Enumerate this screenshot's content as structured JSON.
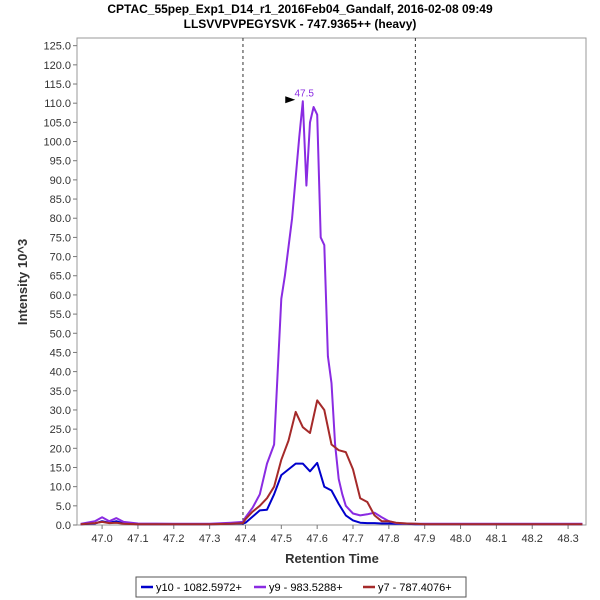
{
  "chart_data": {
    "type": "line",
    "title": "CPTAC_55pep_Exp1_D14_r1_2016Feb04_Gandalf, 2016-02-08 09:49",
    "subtitle": "LLSVVPVPEGYSVK - 747.9365++ (heavy)",
    "xlabel": "Retention Time",
    "ylabel": "Intensity 10^3",
    "xlim": [
      46.93,
      48.35
    ],
    "ylim": [
      0,
      127
    ],
    "x_ticks": [
      47.0,
      47.1,
      47.2,
      47.3,
      47.4,
      47.5,
      47.6,
      47.7,
      47.8,
      47.9,
      48.0,
      48.1,
      48.2,
      48.3
    ],
    "x_tick_labels": [
      "47.0",
      "47.1",
      "47.2",
      "47.3",
      "47.4",
      "47.5",
      "47.6",
      "47.7",
      "47.8",
      "47.9",
      "48.0",
      "48.1",
      "48.2",
      "48.3"
    ],
    "y_ticks": [
      0,
      5,
      10,
      15,
      20,
      25,
      30,
      35,
      40,
      45,
      50,
      55,
      60,
      65,
      70,
      75,
      80,
      85,
      90,
      95,
      100,
      105,
      110,
      115,
      120,
      125
    ],
    "y_tick_labels": [
      "0.0",
      "5.0",
      "10.0",
      "15.0",
      "20.0",
      "25.0",
      "30.0",
      "35.0",
      "40.0",
      "45.0",
      "50.0",
      "55.0",
      "60.0",
      "65.0",
      "70.0",
      "75.0",
      "80.0",
      "85.0",
      "90.0",
      "95.0",
      "100.0",
      "105.0",
      "110.0",
      "115.0",
      "120.0",
      "125.0"
    ],
    "vlines": [
      47.393,
      47.874
    ],
    "peak_annotation": {
      "x": 47.55,
      "y": 110.5,
      "label": "47.5"
    },
    "legend_position": "bottom",
    "series": [
      {
        "name": "y10 - 1082.5972+",
        "color": "#0000cc",
        "x": [
          46.94,
          46.98,
          47.0,
          47.02,
          47.04,
          47.06,
          47.1,
          47.2,
          47.3,
          47.36,
          47.393,
          47.4,
          47.42,
          47.44,
          47.46,
          47.48,
          47.5,
          47.52,
          47.54,
          47.56,
          47.58,
          47.6,
          47.62,
          47.64,
          47.66,
          47.68,
          47.7,
          47.72,
          47.74,
          47.76,
          47.78,
          47.8,
          47.82,
          47.85,
          47.874,
          47.9,
          48.0,
          48.1,
          48.2,
          48.34
        ],
        "y": [
          0.2,
          0.4,
          1.0,
          0.6,
          1.0,
          0.4,
          0.2,
          0.2,
          0.2,
          0.3,
          0.4,
          0.6,
          2.2,
          3.8,
          4.0,
          8.0,
          13.0,
          14.5,
          16.0,
          16.0,
          14.0,
          16.2,
          10.0,
          9.0,
          5.5,
          2.5,
          1.2,
          0.6,
          0.5,
          0.5,
          0.4,
          0.4,
          0.3,
          0.3,
          0.2,
          0.2,
          0.2,
          0.2,
          0.2,
          0.2
        ]
      },
      {
        "name": "y9 - 983.5288+",
        "color": "#8a2be2",
        "x": [
          46.94,
          46.98,
          47.0,
          47.02,
          47.04,
          47.06,
          47.1,
          47.2,
          47.3,
          47.36,
          47.393,
          47.4,
          47.42,
          47.44,
          47.46,
          47.48,
          47.5,
          47.51,
          47.53,
          47.55,
          47.56,
          47.57,
          47.58,
          47.59,
          47.6,
          47.61,
          47.62,
          47.63,
          47.64,
          47.65,
          47.66,
          47.67,
          47.68,
          47.69,
          47.7,
          47.72,
          47.74,
          47.76,
          47.78,
          47.8,
          47.82,
          47.85,
          47.874,
          47.9,
          48.0,
          48.1,
          48.2,
          48.34
        ],
        "y": [
          0.3,
          1.0,
          2.0,
          1.0,
          1.8,
          0.8,
          0.4,
          0.3,
          0.3,
          0.6,
          0.8,
          2.0,
          4.5,
          8.0,
          16.0,
          21.0,
          59.0,
          65.0,
          80.0,
          101.0,
          110.5,
          88.5,
          105.0,
          109.0,
          107.0,
          75.0,
          73.0,
          44.0,
          37.0,
          21.0,
          12.0,
          8.0,
          5.0,
          4.0,
          3.0,
          2.5,
          2.8,
          3.2,
          2.0,
          1.0,
          0.5,
          0.4,
          0.3,
          0.3,
          0.3,
          0.3,
          0.3,
          0.3
        ]
      },
      {
        "name": "y7 - 787.4076+",
        "color": "#a52a2a",
        "x": [
          46.94,
          46.98,
          47.0,
          47.02,
          47.04,
          47.06,
          47.1,
          47.2,
          47.3,
          47.36,
          47.393,
          47.4,
          47.42,
          47.44,
          47.46,
          47.48,
          47.5,
          47.52,
          47.54,
          47.56,
          47.58,
          47.6,
          47.62,
          47.64,
          47.66,
          47.68,
          47.7,
          47.72,
          47.74,
          47.76,
          47.78,
          47.8,
          47.82,
          47.85,
          47.874,
          47.9,
          48.0,
          48.1,
          48.2,
          48.34
        ],
        "y": [
          0.2,
          0.5,
          0.8,
          0.5,
          0.6,
          0.3,
          0.2,
          0.2,
          0.2,
          0.3,
          0.5,
          1.5,
          3.5,
          5.0,
          7.0,
          10.0,
          17.0,
          22.0,
          29.5,
          25.5,
          24.0,
          32.5,
          30.0,
          21.0,
          19.5,
          19.0,
          14.5,
          7.0,
          6.0,
          2.5,
          1.0,
          1.0,
          0.6,
          0.4,
          0.3,
          0.2,
          0.2,
          0.2,
          0.2,
          0.2
        ]
      }
    ]
  }
}
